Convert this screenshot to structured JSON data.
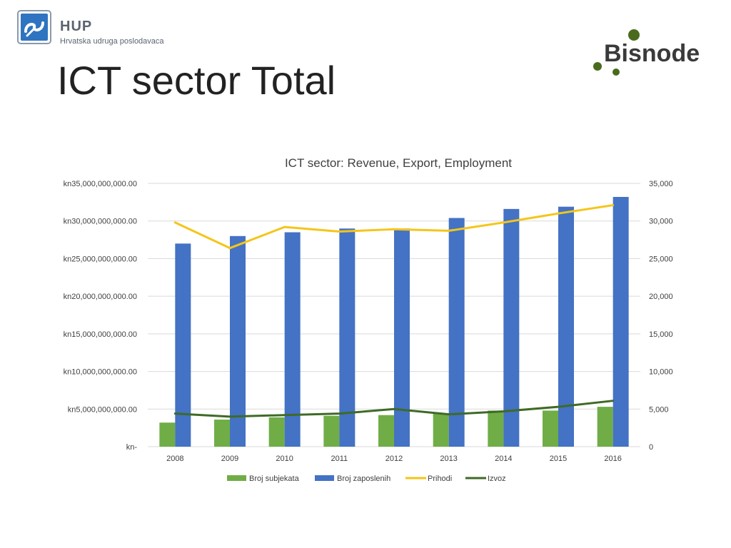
{
  "header": {
    "hup_name": "HUP",
    "hup_subtitle": "Hrvatska udruga poslodavaca",
    "slide_title": "ICT sector Total",
    "bisnode_name": "Bisnode"
  },
  "colors": {
    "broj_subjekata": "#70ad47",
    "broj_zaposlenih": "#4472c4",
    "prihodi": "#f5c518",
    "izvoz": "#3f6a26",
    "grid": "#d9d9d9",
    "bisnode_green": "#4a6b1e",
    "hup_blue": "#2f74c0"
  },
  "chart_data": {
    "type": "bar",
    "title": "ICT sector: Revenue, Export, Employment",
    "categories": [
      "2008",
      "2009",
      "2010",
      "2011",
      "2012",
      "2013",
      "2014",
      "2015",
      "2016"
    ],
    "series": [
      {
        "name": "Broj subjekata",
        "kind": "bar",
        "axis": "right",
        "values": [
          3200,
          3600,
          3900,
          4100,
          4200,
          4400,
          4800,
          4800,
          5300
        ]
      },
      {
        "name": "Broj zaposlenih",
        "kind": "bar",
        "axis": "right",
        "values": [
          27000,
          28000,
          28500,
          29000,
          29000,
          30400,
          31600,
          31900,
          33200
        ]
      },
      {
        "name": "Prihodi",
        "kind": "line",
        "axis": "left",
        "values": [
          29800000000,
          26400000000,
          29200000000,
          28600000000,
          28900000000,
          28700000000,
          29800000000,
          31000000000,
          32100000000
        ]
      },
      {
        "name": "Izvoz",
        "kind": "line",
        "axis": "left",
        "values": [
          4400000000,
          4000000000,
          4200000000,
          4400000000,
          5000000000,
          4300000000,
          4700000000,
          5300000000,
          6100000000
        ]
      }
    ],
    "left_axis": {
      "min": 0,
      "max": 35000000000,
      "tick_labels": [
        "kn-",
        "kn5,000,000,000.00",
        "kn10,000,000,000.00",
        "kn15,000,000,000.00",
        "kn20,000,000,000.00",
        "kn25,000,000,000.00",
        "kn30,000,000,000.00",
        "kn35,000,000,000.00"
      ]
    },
    "right_axis": {
      "min": 0,
      "max": 35000,
      "tick_labels": [
        "0",
        "5,000",
        "10,000",
        "15,000",
        "20,000",
        "25,000",
        "30,000",
        "35,000"
      ]
    },
    "grid": true,
    "legend_position": "bottom"
  }
}
